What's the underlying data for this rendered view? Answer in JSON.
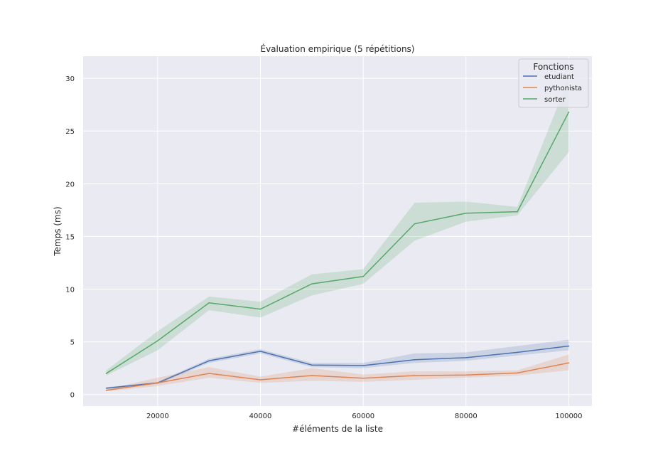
{
  "chart_data": {
    "type": "line",
    "title": "Évaluation empirique (5 répétitions)",
    "xlabel": "#éléments de la liste",
    "ylabel": "Temps (ms)",
    "xlim": [
      5500,
      104500
    ],
    "ylim": [
      -1.1,
      32.1
    ],
    "xticks": [
      20000,
      40000,
      60000,
      80000,
      100000
    ],
    "yticks": [
      0,
      5,
      10,
      15,
      20,
      25,
      30
    ],
    "grid": true,
    "legend": {
      "title": "Fonctions",
      "placement": "top-right"
    },
    "x": [
      10000,
      20000,
      30000,
      40000,
      50000,
      60000,
      70000,
      80000,
      90000,
      100000
    ],
    "series": [
      {
        "name": "etudiant",
        "color": "#4c72b0",
        "values": [
          0.6,
          1.1,
          3.2,
          4.1,
          2.8,
          2.75,
          3.3,
          3.5,
          4.0,
          4.6
        ],
        "ci_low": [
          0.5,
          1.0,
          3.0,
          3.9,
          2.6,
          2.5,
          3.0,
          3.2,
          3.7,
          4.2
        ],
        "ci_high": [
          0.7,
          1.2,
          3.4,
          4.3,
          3.0,
          3.0,
          3.9,
          4.0,
          4.6,
          5.2
        ]
      },
      {
        "name": "pythonista",
        "color": "#dd8452",
        "values": [
          0.4,
          1.1,
          2.0,
          1.4,
          1.8,
          1.55,
          1.8,
          1.85,
          2.05,
          3.0
        ],
        "ci_low": [
          0.3,
          0.8,
          1.6,
          1.1,
          1.3,
          1.2,
          1.4,
          1.6,
          1.8,
          2.3
        ],
        "ci_high": [
          0.5,
          1.6,
          2.6,
          1.7,
          2.5,
          1.9,
          2.2,
          2.2,
          2.3,
          3.8
        ]
      },
      {
        "name": "sorter",
        "color": "#55a868",
        "values": [
          2.0,
          5.1,
          8.7,
          8.1,
          10.5,
          11.2,
          16.2,
          17.2,
          17.35,
          26.8
        ],
        "ci_low": [
          1.8,
          4.2,
          8.0,
          7.3,
          9.4,
          10.5,
          14.6,
          16.4,
          17.0,
          23.0
        ],
        "ci_high": [
          2.3,
          6.0,
          9.3,
          8.8,
          11.4,
          11.9,
          18.2,
          18.3,
          17.8,
          30.0
        ]
      }
    ]
  }
}
